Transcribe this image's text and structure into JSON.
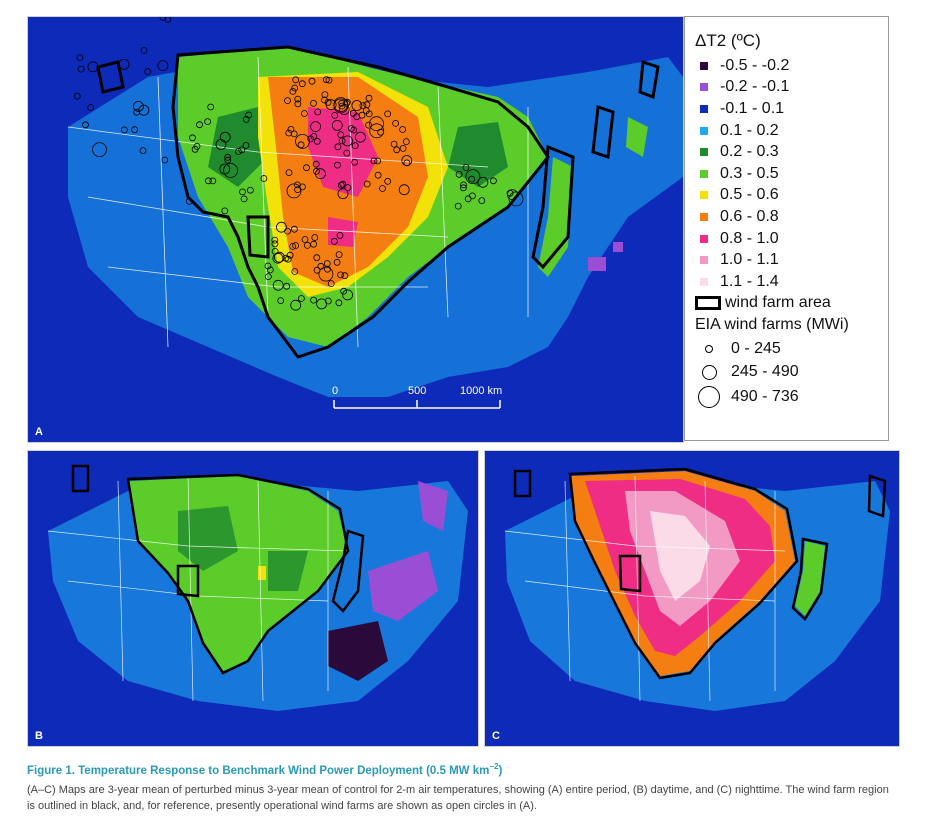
{
  "legend": {
    "title": "ΔT2 (ºC)",
    "bins": [
      {
        "label": "-0.5 - -0.2",
        "color": "#2a0a3a"
      },
      {
        "label": "-0.2 - -0.1",
        "color": "#9a4ed6"
      },
      {
        "label": "-0.1 - 0.1",
        "color": "#0d2bb8"
      },
      {
        "label": "0.1 - 0.2",
        "color": "#1eaaf0"
      },
      {
        "label": "0.2 - 0.3",
        "color": "#1f8a2e"
      },
      {
        "label": "0.3 - 0.5",
        "color": "#5ccc2a"
      },
      {
        "label": "0.5 - 0.6",
        "color": "#f2e20a"
      },
      {
        "label": "0.6 - 0.8",
        "color": "#f47e12"
      },
      {
        "label": "0.8 - 1.0",
        "color": "#ef2d84"
      },
      {
        "label": "1.0 - 1.1",
        "color": "#f39ac4"
      },
      {
        "label": "1.1 - 1.4",
        "color": "#fbdbe8"
      }
    ],
    "wind_farm_area_label": "wind farm area",
    "eia_title": "EIA wind farms (MWi)",
    "eia_bins": [
      "0 - 245",
      "245 - 490",
      "490 - 736"
    ]
  },
  "scale_bar": {
    "ticks": [
      "0",
      "500",
      "1000 km"
    ]
  },
  "panels": [
    {
      "letter": "A"
    },
    {
      "letter": "B"
    },
    {
      "letter": "C"
    }
  ],
  "caption": {
    "title": "Figure 1.  Temperature Response to Benchmark Wind Power Deployment (0.5 MW km",
    "title_sup": "−2",
    "title_end": ")",
    "body": "(A–C) Maps are 3-year mean of perturbed minus 3-year mean of control for 2-m air temperatures, showing (A) entire period, (B) daytime, and (C) nighttime. The wind farm region is outlined in black, and, for reference, presently operational wind farms are shown as open circles in (A)."
  },
  "colors": {
    "ocean": "#0d2bb8",
    "outline": "#000000",
    "borders": "#ffffff"
  }
}
